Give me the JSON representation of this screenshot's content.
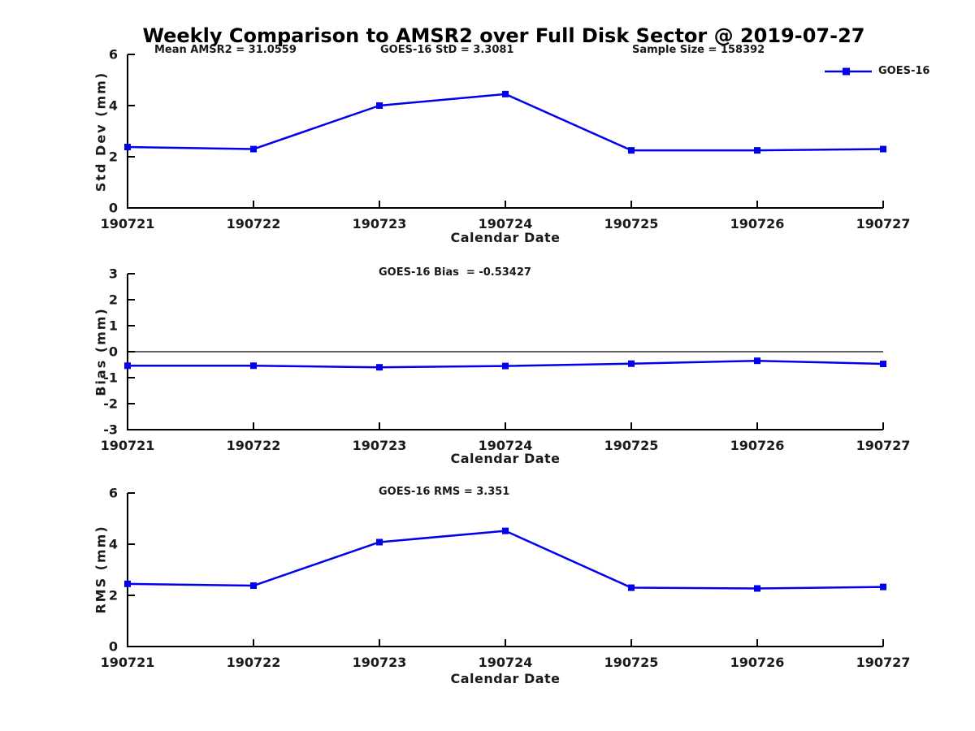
{
  "title": "Weekly Comparison to AMSR2 over Full Disk Sector @ 2019-07-27",
  "colors": {
    "line": "#0000ee",
    "axis": "#000000",
    "text": "#1a1a1a"
  },
  "legend": {
    "label": "GOES-16"
  },
  "chart_data": [
    {
      "type": "line",
      "name": "std-dev",
      "title": "",
      "annotations": [
        "Mean AMSR2 = 31.0559",
        "GOES-16 StD = 3.3081",
        "Sample Size = 158392"
      ],
      "categories": [
        "190721",
        "190722",
        "190723",
        "190724",
        "190725",
        "190726",
        "190727"
      ],
      "series": [
        {
          "name": "GOES-16",
          "values": [
            2.38,
            2.3,
            4.0,
            4.45,
            2.25,
            2.25,
            2.3
          ]
        }
      ],
      "xlabel": "Calendar Date",
      "ylabel": "Std Dev (mm)",
      "ylim": [
        0,
        6
      ],
      "yticks": [
        0,
        2,
        4,
        6
      ],
      "zero_line": false,
      "grid": false,
      "legend_position": "top-right"
    },
    {
      "type": "line",
      "name": "bias",
      "title": "",
      "annotations": [
        "GOES-16 Bias  = -0.53427"
      ],
      "categories": [
        "190721",
        "190722",
        "190723",
        "190724",
        "190725",
        "190726",
        "190727"
      ],
      "series": [
        {
          "name": "GOES-16",
          "values": [
            -0.54,
            -0.54,
            -0.6,
            -0.55,
            -0.46,
            -0.35,
            -0.47
          ]
        }
      ],
      "xlabel": "Calendar Date",
      "ylabel": "Bias (mm)",
      "ylim": [
        -3,
        3
      ],
      "yticks": [
        -3,
        -2,
        -1,
        0,
        1,
        2,
        3
      ],
      "zero_line": true,
      "grid": false,
      "legend_position": "none"
    },
    {
      "type": "line",
      "name": "rms",
      "title": "",
      "annotations": [
        "GOES-16 RMS = 3.351"
      ],
      "categories": [
        "190721",
        "190722",
        "190723",
        "190724",
        "190725",
        "190726",
        "190727"
      ],
      "series": [
        {
          "name": "GOES-16",
          "values": [
            2.45,
            2.38,
            4.08,
            4.52,
            2.3,
            2.27,
            2.33
          ]
        }
      ],
      "xlabel": "Calendar Date",
      "ylabel": "RMS (mm)",
      "ylim": [
        0,
        6
      ],
      "yticks": [
        0,
        2,
        4,
        6
      ],
      "zero_line": false,
      "grid": false,
      "legend_position": "none"
    }
  ]
}
